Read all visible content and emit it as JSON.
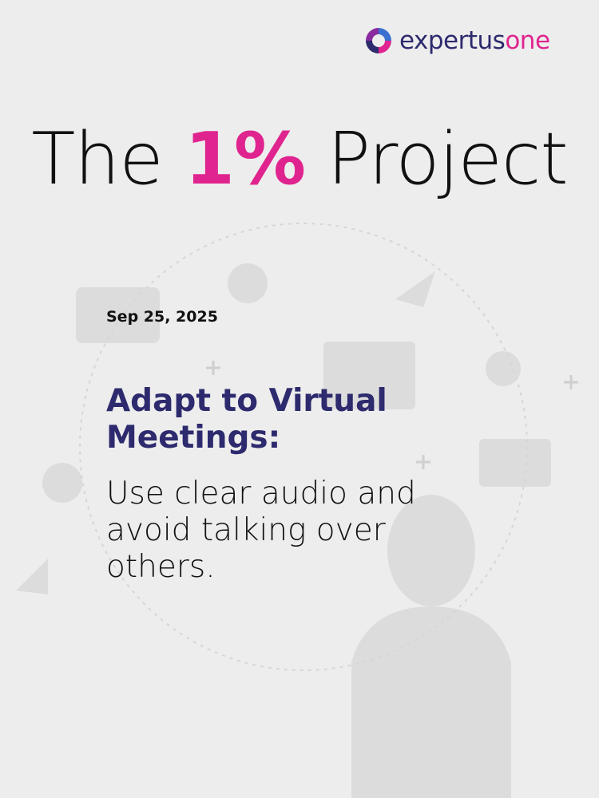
{
  "brand": {
    "name_part1": "expertus",
    "name_part2": "one",
    "primary_color": "#2d2a6e",
    "accent_color": "#e0248f"
  },
  "title": {
    "prefix": "The ",
    "highlight": "1%",
    "suffix": " Project"
  },
  "post": {
    "date": "Sep 25, 2025",
    "headline": "Adapt to Virtual Meetings:",
    "body": "Use clear audio and avoid talking over others."
  }
}
